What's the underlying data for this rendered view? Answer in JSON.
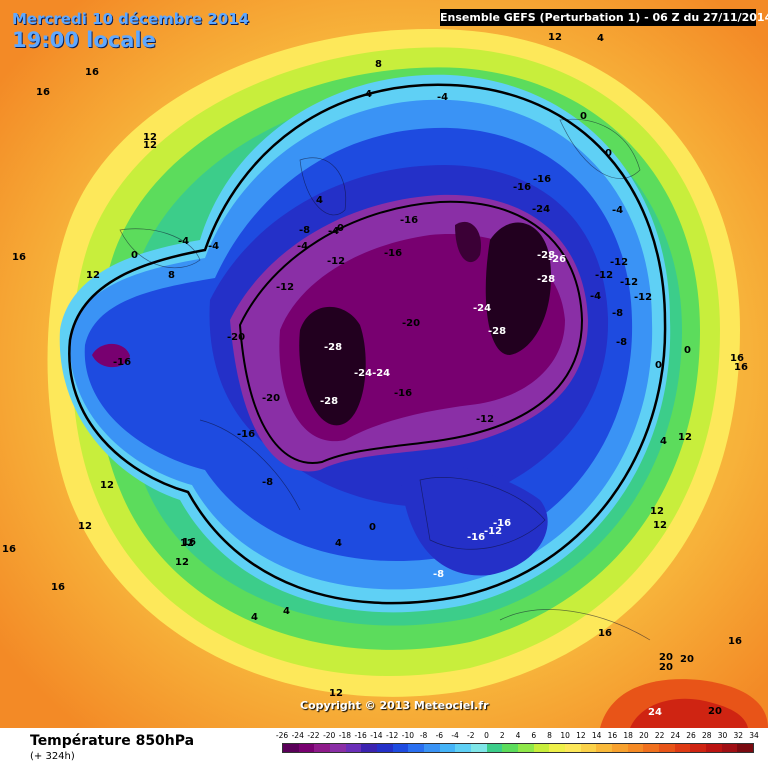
{
  "header": {
    "date_line": "Mercredi 10 décembre 2014",
    "time_line": "19:00 locale",
    "model_info": "Ensemble GEFS (Perturbation 1)  -  06 Z du 27/11/2014"
  },
  "footer": {
    "variable_title": "Température 850hPa",
    "forecast_step": "(+ 324h)",
    "copyright": "Copyright © 2013 Meteociel.fr"
  },
  "legend": {
    "labels": [
      "-26",
      "-24",
      "-22",
      "-20",
      "-18",
      "-16",
      "-14",
      "-12",
      "-10",
      "-8",
      "-6",
      "-4",
      "-2",
      "0",
      "2",
      "4",
      "6",
      "8",
      "10",
      "12",
      "14",
      "16",
      "18",
      "20",
      "22",
      "24",
      "26",
      "28",
      "30",
      "32",
      "34"
    ],
    "colors": [
      "#5a0059",
      "#780070",
      "#8e1a8a",
      "#8a2fa6",
      "#6a2fb8",
      "#3b23b0",
      "#2430c8",
      "#1e4be0",
      "#2a6ff0",
      "#3a93f5",
      "#45b4f8",
      "#5fd0f5",
      "#7fe6e8",
      "#3ccd8a",
      "#5cdc5c",
      "#8fe84a",
      "#c8ee3c",
      "#eef04a",
      "#fde85a",
      "#fbd24a",
      "#f9b93a",
      "#f7a12e",
      "#f58a25",
      "#f0701e",
      "#e85418",
      "#de3a14",
      "#cf2412",
      "#bb1411",
      "#a00f14",
      "#7a0a10"
    ]
  },
  "map_labels": [
    {
      "id": "l1",
      "text": "12"
    },
    {
      "id": "l2",
      "text": "16"
    },
    {
      "id": "l3",
      "text": "16"
    },
    {
      "id": "l4",
      "text": "16"
    },
    {
      "id": "l5",
      "text": "12"
    },
    {
      "id": "l6",
      "text": "12"
    },
    {
      "id": "l7",
      "text": "8"
    },
    {
      "id": "l8",
      "text": "4"
    },
    {
      "id": "l9",
      "text": "-4"
    },
    {
      "id": "l10",
      "text": "0"
    },
    {
      "id": "l11",
      "text": "0"
    },
    {
      "id": "l12",
      "text": "-4"
    },
    {
      "id": "l13",
      "text": "-16"
    },
    {
      "id": "l14",
      "text": "-16"
    },
    {
      "id": "l15",
      "text": "-24"
    },
    {
      "id": "l16",
      "text": "-4"
    },
    {
      "id": "l17",
      "text": "-12"
    },
    {
      "id": "l18",
      "text": "-12"
    },
    {
      "id": "l19",
      "text": "-12"
    },
    {
      "id": "l20",
      "text": "-12"
    },
    {
      "id": "l21",
      "text": "-28"
    },
    {
      "id": "l22",
      "text": "-28"
    },
    {
      "id": "l23",
      "text": "-26"
    },
    {
      "id": "l24",
      "text": "-24"
    },
    {
      "id": "l25",
      "text": "-28"
    },
    {
      "id": "l26",
      "text": "-8"
    },
    {
      "id": "l27",
      "text": "-8"
    },
    {
      "id": "l28",
      "text": "-4"
    },
    {
      "id": "l29",
      "text": "0"
    },
    {
      "id": "l30",
      "text": "0"
    },
    {
      "id": "l31",
      "text": "4"
    },
    {
      "id": "l32",
      "text": "16"
    },
    {
      "id": "l33",
      "text": "16"
    },
    {
      "id": "l34",
      "text": "12"
    },
    {
      "id": "l35",
      "text": "12"
    },
    {
      "id": "l36",
      "text": "12"
    },
    {
      "id": "l37",
      "text": "16"
    },
    {
      "id": "l38",
      "text": "20"
    },
    {
      "id": "l39",
      "text": "20"
    },
    {
      "id": "l40",
      "text": "20"
    },
    {
      "id": "l41",
      "text": "24"
    },
    {
      "id": "l42",
      "text": "20"
    },
    {
      "id": "l43",
      "text": "16"
    },
    {
      "id": "l44",
      "text": "-16"
    },
    {
      "id": "l45",
      "text": "-12"
    },
    {
      "id": "l46",
      "text": "-16"
    },
    {
      "id": "l47",
      "text": "-8"
    },
    {
      "id": "l48",
      "text": "0"
    },
    {
      "id": "l49",
      "text": "4"
    },
    {
      "id": "l50",
      "text": "4"
    },
    {
      "id": "l51",
      "text": "4"
    },
    {
      "id": "l52",
      "text": "12"
    },
    {
      "id": "l53",
      "text": "12"
    },
    {
      "id": "l54",
      "text": "12"
    },
    {
      "id": "l55",
      "text": "16"
    },
    {
      "id": "l56",
      "text": "16"
    },
    {
      "id": "l57",
      "text": "12"
    },
    {
      "id": "l58",
      "text": "12"
    },
    {
      "id": "l59",
      "text": "-16"
    },
    {
      "id": "l60",
      "text": "-20"
    },
    {
      "id": "l61",
      "text": "-16"
    },
    {
      "id": "l62",
      "text": "-8"
    },
    {
      "id": "l63",
      "text": "-20"
    },
    {
      "id": "l64",
      "text": "-28"
    },
    {
      "id": "l65",
      "text": "-24-24"
    },
    {
      "id": "l66",
      "text": "-28"
    },
    {
      "id": "l67",
      "text": "-16"
    },
    {
      "id": "l68",
      "text": "-12"
    },
    {
      "id": "l69",
      "text": "-20"
    },
    {
      "id": "l70",
      "text": "-16"
    },
    {
      "id": "l71",
      "text": "-12"
    },
    {
      "id": "l72",
      "text": "-16"
    },
    {
      "id": "l73",
      "text": "-4"
    },
    {
      "id": "l74",
      "text": "-12"
    },
    {
      "id": "l75",
      "text": "-8"
    },
    {
      "id": "l76",
      "text": "-4"
    },
    {
      "id": "l77",
      "text": "0"
    },
    {
      "id": "l78",
      "text": "4"
    },
    {
      "id": "l79",
      "text": "12"
    },
    {
      "id": "l80",
      "text": "8"
    },
    {
      "id": "l81",
      "text": "0"
    },
    {
      "id": "l82",
      "text": "-4"
    },
    {
      "id": "l83",
      "text": "4"
    },
    {
      "id": "l84",
      "text": "16"
    },
    {
      "id": "l85",
      "text": "12"
    }
  ]
}
